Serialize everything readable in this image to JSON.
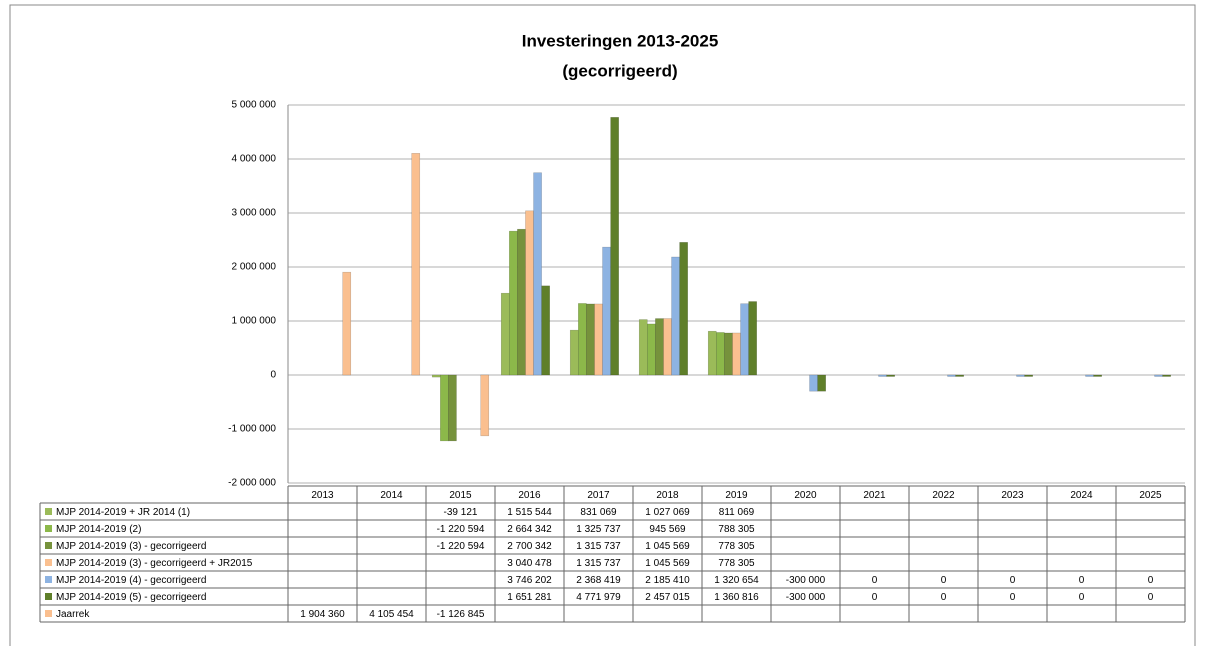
{
  "chart_data": {
    "type": "bar",
    "title": "Investeringen 2013-2025",
    "subtitle": "(gecorrigeerd)",
    "categories": [
      "2013",
      "2014",
      "2015",
      "2016",
      "2017",
      "2018",
      "2019",
      "2020",
      "2021",
      "2022",
      "2023",
      "2024",
      "2025"
    ],
    "ylim": [
      -2000000,
      5000000
    ],
    "yticks": [
      {
        "value": -2000000,
        "label": "-2 000 000"
      },
      {
        "value": -1000000,
        "label": "-1 000 000"
      },
      0,
      {
        "value": 1000000,
        "label": "1 000 000"
      },
      {
        "value": 2000000,
        "label": "2 000 000"
      },
      {
        "value": 3000000,
        "label": "3 000 000"
      },
      {
        "value": 4000000,
        "label": "4 000 000"
      },
      {
        "value": 5000000,
        "label": "5 000 000"
      }
    ],
    "grid": true,
    "series": [
      {
        "name": "MJP 2014-2019 + JR 2014 (1)",
        "color": "#9bbb59",
        "values": [
          null,
          null,
          -39121,
          1515544,
          831069,
          1027069,
          811069,
          null,
          null,
          null,
          null,
          null,
          null
        ],
        "value_labels": [
          null,
          null,
          "-39 121",
          "1 515 544",
          "831 069",
          "1 027 069",
          "811 069",
          null,
          null,
          null,
          null,
          null,
          null
        ]
      },
      {
        "name": "MJP 2014-2019 (2)",
        "color": "#8cb84a",
        "values": [
          null,
          null,
          -1220594,
          2664342,
          1325737,
          945569,
          788305,
          null,
          null,
          null,
          null,
          null,
          null
        ],
        "value_labels": [
          null,
          null,
          "-1 220 594",
          "2 664 342",
          "1 325 737",
          "945 569",
          "788 305",
          null,
          null,
          null,
          null,
          null,
          null
        ]
      },
      {
        "name": "MJP 2014-2019 (3) - gecorrigeerd",
        "color": "#76923c",
        "values": [
          null,
          null,
          -1220594,
          2700342,
          1315737,
          1045569,
          778305,
          null,
          null,
          null,
          null,
          null,
          null
        ],
        "value_labels": [
          null,
          null,
          "-1 220 594",
          "2 700 342",
          "1 315 737",
          "1 045 569",
          "778 305",
          null,
          null,
          null,
          null,
          null,
          null
        ]
      },
      {
        "name": "MJP 2014-2019 (3) - gecorrigeerd + JR2015",
        "color": "#fac090",
        "values": [
          null,
          null,
          null,
          3040478,
          1315737,
          1045569,
          778305,
          null,
          null,
          null,
          null,
          null,
          null
        ],
        "value_labels": [
          null,
          null,
          null,
          "3 040 478",
          "1 315 737",
          "1 045 569",
          "778 305",
          null,
          null,
          null,
          null,
          null,
          null
        ]
      },
      {
        "name": "MJP 2014-2019 (4) - gecorrigeerd",
        "color": "#8db3e2",
        "values": [
          null,
          null,
          null,
          3746202,
          2368419,
          2185410,
          1320654,
          -300000,
          0,
          0,
          0,
          0,
          0
        ],
        "value_labels": [
          null,
          null,
          null,
          "3 746 202",
          "2 368 419",
          "2 185 410",
          "1 320 654",
          "-300 000",
          "0",
          "0",
          "0",
          "0",
          "0"
        ]
      },
      {
        "name": "MJP 2014-2019 (5) - gecorrigeerd",
        "color": "#5f7f2a",
        "values": [
          null,
          null,
          null,
          1651281,
          4771979,
          2457015,
          1360816,
          -300000,
          0,
          0,
          0,
          0,
          0
        ],
        "value_labels": [
          null,
          null,
          null,
          "1 651 281",
          "4 771 979",
          "2 457 015",
          "1 360 816",
          "-300 000",
          "0",
          "0",
          "0",
          "0",
          "0"
        ]
      },
      {
        "name": "Jaarrek",
        "color": "#fabf8f",
        "values": [
          1904360,
          4105454,
          -1126845,
          null,
          null,
          null,
          null,
          null,
          null,
          null,
          null,
          null,
          null
        ],
        "value_labels": [
          "1 904 360",
          "4 105 454",
          "-1 126 845",
          null,
          null,
          null,
          null,
          null,
          null,
          null,
          null,
          null,
          null
        ]
      }
    ]
  }
}
